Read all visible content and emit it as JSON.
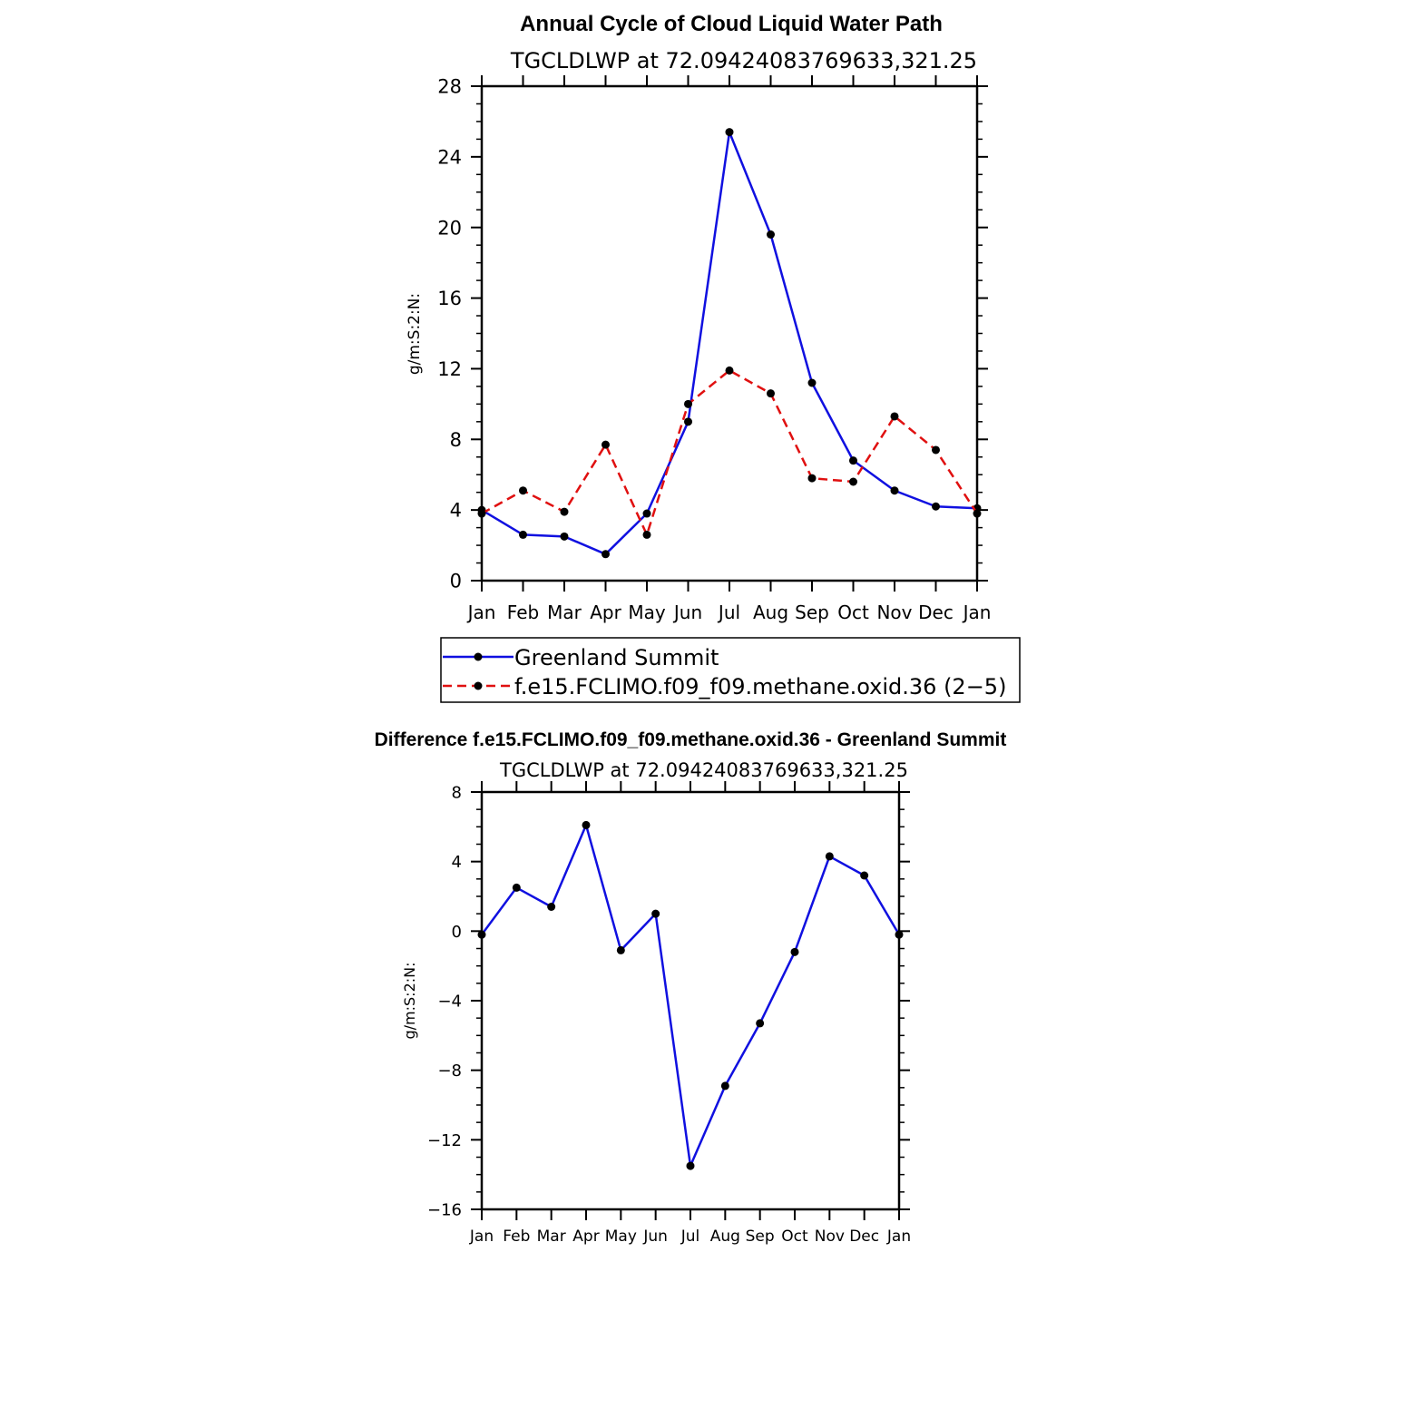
{
  "colors": {
    "obs": "#1010e0",
    "model": "#e01010",
    "marker": "#000000",
    "axis": "#000000"
  },
  "chart_data": [
    {
      "type": "line",
      "title": "Annual Cycle of Cloud Liquid Water Path",
      "subtitle": "TGCLDLWP  at  72.09424083769633,321.25",
      "ylabel": "g/m:S:2:N:",
      "ylim": [
        0,
        28
      ],
      "yticks": [
        "0",
        "4",
        "8",
        "12",
        "16",
        "20",
        "24",
        "28"
      ],
      "categories": [
        "Jan",
        "Feb",
        "Mar",
        "Apr",
        "May",
        "Jun",
        "Jul",
        "Aug",
        "Sep",
        "Oct",
        "Nov",
        "Dec",
        "Jan"
      ],
      "series": [
        {
          "name": "Greenland Summit",
          "style": "solid",
          "color": "#1010e0",
          "values": [
            4.0,
            2.6,
            2.5,
            1.5,
            3.8,
            9.0,
            25.4,
            19.6,
            11.2,
            6.8,
            5.1,
            4.2,
            4.1
          ]
        },
        {
          "name": "f.e15.FCLIMO.f09_f09.methane.oxid.36 (2−5)",
          "style": "dashed",
          "color": "#e01010",
          "values": [
            3.8,
            5.1,
            3.9,
            7.7,
            2.6,
            10.0,
            11.9,
            10.6,
            5.8,
            5.6,
            9.3,
            7.4,
            3.8
          ]
        }
      ],
      "legend_position": "below"
    },
    {
      "type": "line",
      "title": "Difference f.e15.FCLIMO.f09_f09.methane.oxid.36 - Greenland Summit",
      "subtitle": "TGCLDLWP  at  72.09424083769633,321.25",
      "ylabel": "g/m:S:2:N:",
      "ylim": [
        -16,
        8
      ],
      "yticks": [
        "−16",
        "−12",
        "−8",
        "−4",
        "0",
        "4",
        "8"
      ],
      "categories": [
        "Jan",
        "Feb",
        "Mar",
        "Apr",
        "May",
        "Jun",
        "Jul",
        "Aug",
        "Sep",
        "Oct",
        "Nov",
        "Dec",
        "Jan"
      ],
      "series": [
        {
          "style": "solid",
          "color": "#1010e0",
          "values": [
            -0.2,
            2.5,
            1.4,
            6.1,
            -1.1,
            1.0,
            -13.5,
            -8.9,
            -5.3,
            -1.2,
            4.3,
            3.2,
            -0.2
          ]
        }
      ]
    }
  ]
}
